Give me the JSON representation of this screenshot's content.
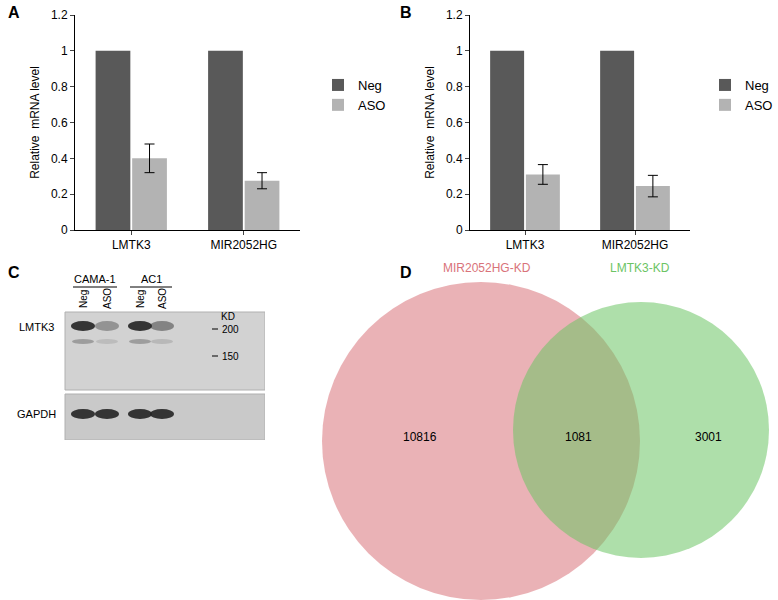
{
  "chart_data": [
    {
      "type": "bar",
      "title": "A",
      "categories": [
        "LMTK3",
        "MIR2052HG"
      ],
      "series": [
        {
          "name": "Neg",
          "color": "#595959",
          "values": [
            1,
            1
          ]
        },
        {
          "name": "ASO",
          "color": "#b3b3b3",
          "values": [
            0.4,
            0.275
          ],
          "error": [
            0.08,
            0.045
          ]
        }
      ],
      "y_label": "Relative  mRNA level",
      "ylim": [
        0,
        1.2
      ],
      "yticks": [
        0,
        0.2,
        0.4,
        0.6,
        0.8,
        1,
        1.2
      ],
      "grid": false,
      "legend": "right"
    },
    {
      "type": "bar",
      "title": "B",
      "categories": [
        "LMTK3",
        "MIR2052HG"
      ],
      "series": [
        {
          "name": "Neg",
          "color": "#595959",
          "values": [
            1,
            1
          ]
        },
        {
          "name": "ASO",
          "color": "#b3b3b3",
          "values": [
            0.31,
            0.245
          ],
          "error": [
            0.055,
            0.06
          ]
        }
      ],
      "y_label": "Relative  mRNA level",
      "ylim": [
        0,
        1.2
      ],
      "yticks": [
        0,
        0.2,
        0.4,
        0.6,
        0.8,
        1,
        1.2
      ],
      "grid": false,
      "legend": "right"
    },
    {
      "type": "western_blot",
      "title": "C",
      "groups": [
        {
          "name": "CAMA-1",
          "lanes": [
            "Neg",
            "ASO"
          ]
        },
        {
          "name": "AC1",
          "lanes": [
            "Neg",
            "ASO"
          ]
        }
      ],
      "rows": [
        {
          "name": "LMTK3",
          "intensity": [
            1,
            0.4,
            1,
            0.5
          ]
        },
        {
          "name": "GAPDH",
          "intensity": [
            1,
            1,
            1,
            1
          ]
        }
      ],
      "marker_unit": "KD",
      "markers": [
        200,
        150
      ]
    },
    {
      "type": "venn",
      "title": "D",
      "sets": [
        {
          "name": "MIR2052HG-KD",
          "color": "#d9737a",
          "only": 10816
        },
        {
          "name": "LMTK3-KD",
          "color": "#6cc464",
          "only": 3001
        }
      ],
      "overlap": 1081
    }
  ]
}
